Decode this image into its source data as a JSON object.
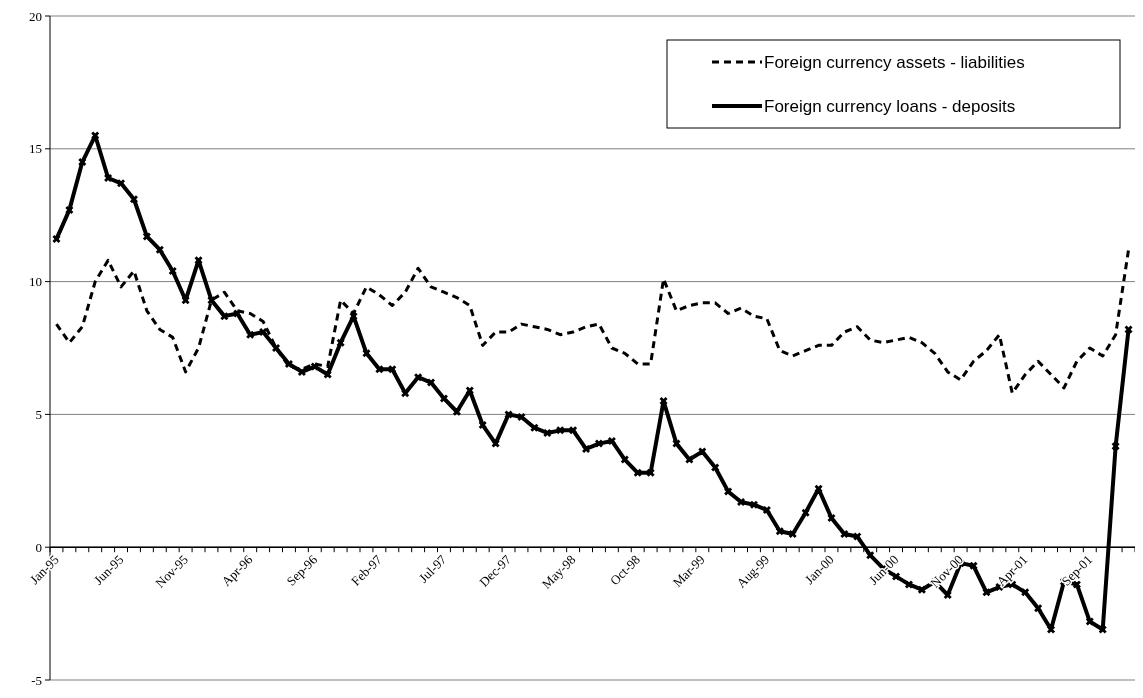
{
  "chart_data": {
    "type": "line",
    "categories": [
      "Jan-95",
      null,
      null,
      null,
      null,
      "Jun-95",
      null,
      null,
      null,
      null,
      "Nov-95",
      null,
      null,
      null,
      null,
      "Apr-96",
      null,
      null,
      null,
      null,
      "Sep-96",
      null,
      null,
      null,
      null,
      "Feb-97",
      null,
      null,
      null,
      null,
      "Jul-97",
      null,
      null,
      null,
      null,
      "Dec-97",
      null,
      null,
      null,
      null,
      "May-98",
      null,
      null,
      null,
      null,
      "Oct-98",
      null,
      null,
      null,
      null,
      "Mar-99",
      null,
      null,
      null,
      null,
      "Aug-99",
      null,
      null,
      null,
      null,
      "Jan-00",
      null,
      null,
      null,
      null,
      "Jun-00",
      null,
      null,
      null,
      null,
      "Nov-00",
      null,
      null,
      null,
      null,
      "Apr-01",
      null,
      null,
      null,
      null,
      "Sep-01",
      null,
      null,
      null
    ],
    "series": [
      {
        "name": "Foreign currency assets - liabilities",
        "color": "#000000",
        "line_style": "dashed",
        "marker": "none",
        "values": [
          8.4,
          7.7,
          8.3,
          10.0,
          10.8,
          9.8,
          10.4,
          8.9,
          8.2,
          7.9,
          6.6,
          7.5,
          9.3,
          9.6,
          8.9,
          8.8,
          8.5,
          7.5,
          6.8,
          6.7,
          6.9,
          6.8,
          9.3,
          8.8,
          9.8,
          9.5,
          9.1,
          9.6,
          10.5,
          9.8,
          9.6,
          9.4,
          9.1,
          7.6,
          8.1,
          8.1,
          8.4,
          8.3,
          8.2,
          8.0,
          8.1,
          8.3,
          8.4,
          7.5,
          7.3,
          6.9,
          6.9,
          10.1,
          8.9,
          9.1,
          9.2,
          9.2,
          8.8,
          9.0,
          8.7,
          8.6,
          7.4,
          7.2,
          7.4,
          7.6,
          7.6,
          8.1,
          8.3,
          7.8,
          7.7,
          7.8,
          7.9,
          7.7,
          7.3,
          6.6,
          6.3,
          7.0,
          7.4,
          8.0,
          5.8,
          6.5,
          7.0,
          6.5,
          6.0,
          7.0,
          7.5,
          7.2,
          8.0,
          11.2
        ]
      },
      {
        "name": "Foreign currency loans - deposits",
        "color": "#000000",
        "line_style": "solid",
        "marker": "cross",
        "values": [
          11.6,
          12.7,
          14.5,
          15.5,
          13.9,
          13.7,
          13.1,
          11.7,
          11.2,
          10.4,
          9.3,
          10.8,
          9.3,
          8.7,
          8.8,
          8.0,
          8.1,
          7.5,
          6.9,
          6.6,
          6.8,
          6.5,
          7.7,
          8.7,
          7.3,
          6.7,
          6.7,
          5.8,
          6.4,
          6.2,
          5.6,
          5.1,
          5.9,
          4.6,
          3.9,
          5.0,
          4.9,
          4.5,
          4.3,
          4.4,
          4.4,
          3.7,
          3.9,
          4.0,
          3.3,
          2.8,
          2.8,
          5.5,
          3.9,
          3.3,
          3.6,
          3.0,
          2.1,
          1.7,
          1.6,
          1.4,
          0.6,
          0.5,
          1.3,
          2.2,
          1.1,
          0.5,
          0.4,
          -0.3,
          -0.8,
          -1.1,
          -1.4,
          -1.6,
          -1.3,
          -1.8,
          -0.6,
          -0.7,
          -1.7,
          -1.5,
          -1.4,
          -1.7,
          -2.3,
          -3.1,
          -1.3,
          -1.4,
          -2.8,
          -3.1,
          3.8,
          8.2
        ]
      }
    ],
    "ylim": [
      -5,
      20
    ],
    "yticks": [
      -5,
      0,
      5,
      10,
      15,
      20
    ],
    "grid": "y",
    "legend": "top right"
  }
}
